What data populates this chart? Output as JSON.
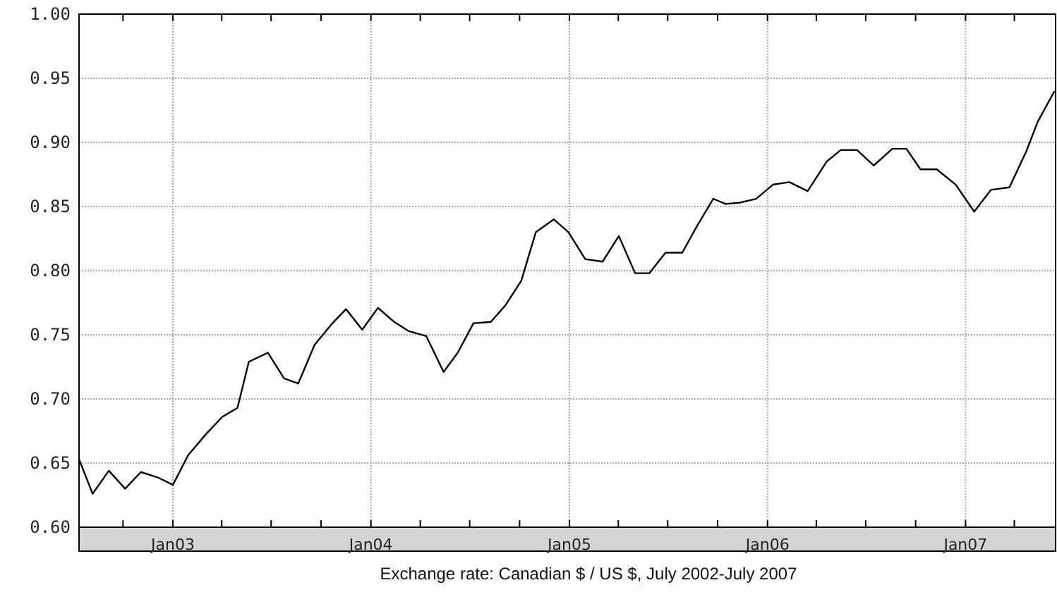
{
  "chart_data": {
    "type": "line",
    "title": "Exchange rate: Canadian $ / US $, July 2002-July 2007",
    "x": [
      "2002-07-12",
      "2002-08-06",
      "2002-09-05",
      "2002-10-05",
      "2002-11-03",
      "2002-12-03",
      "2003-01-01",
      "2003-01-29",
      "2003-03-04",
      "2003-04-02",
      "2003-04-30",
      "2003-05-21",
      "2003-06-25",
      "2003-07-25",
      "2003-08-20",
      "2003-09-19",
      "2003-10-20",
      "2003-11-16",
      "2003-12-16",
      "2004-01-14",
      "2004-02-13",
      "2004-03-10",
      "2004-04-12",
      "2004-05-14",
      "2004-06-09",
      "2004-07-08",
      "2004-08-09",
      "2004-09-05",
      "2004-10-04",
      "2004-10-31",
      "2004-12-03",
      "2004-12-30",
      "2005-01-30",
      "2005-03-03",
      "2005-04-02",
      "2005-05-02",
      "2005-05-28",
      "2005-06-27",
      "2005-07-28",
      "2005-08-23",
      "2005-09-23",
      "2005-10-16",
      "2005-11-11",
      "2005-12-11",
      "2006-01-11",
      "2006-02-10",
      "2006-03-16",
      "2006-04-20",
      "2006-05-16",
      "2006-06-15",
      "2006-07-16",
      "2006-08-19",
      "2006-09-14",
      "2006-10-10",
      "2006-11-09",
      "2006-12-14",
      "2007-01-17",
      "2007-02-17",
      "2007-03-23",
      "2007-04-23",
      "2007-05-14",
      "2007-06-14"
    ],
    "series": [
      {
        "color": "#000000",
        "values": [
          0.653,
          0.626,
          0.644,
          0.63,
          0.643,
          0.639,
          0.633,
          0.656,
          0.673,
          0.686,
          0.693,
          0.729,
          0.736,
          0.716,
          0.712,
          0.742,
          0.758,
          0.77,
          0.754,
          0.771,
          0.76,
          0.753,
          0.749,
          0.721,
          0.736,
          0.759,
          0.76,
          0.773,
          0.792,
          0.83,
          0.84,
          0.83,
          0.809,
          0.807,
          0.827,
          0.798,
          0.798,
          0.814,
          0.814,
          0.834,
          0.856,
          0.852,
          0.853,
          0.856,
          0.867,
          0.869,
          0.862,
          0.885,
          0.894,
          0.894,
          0.882,
          0.895,
          0.895,
          0.879,
          0.879,
          0.867,
          0.846,
          0.863,
          0.865,
          0.893,
          0.916,
          0.94
        ]
      }
    ],
    "xlim": [
      "2002-07-12",
      "2007-06-16"
    ],
    "xticks": [
      {
        "value": "2002-10-01",
        "label": null
      },
      {
        "value": "2003-01-01",
        "label": "Jan03"
      },
      {
        "value": "2003-04-01",
        "label": null
      },
      {
        "value": "2003-07-01",
        "label": null
      },
      {
        "value": "2003-10-01",
        "label": null
      },
      {
        "value": "2004-01-01",
        "label": "Jan04"
      },
      {
        "value": "2004-04-01",
        "label": null
      },
      {
        "value": "2004-07-01",
        "label": null
      },
      {
        "value": "2004-10-01",
        "label": null
      },
      {
        "value": "2005-01-01",
        "label": "Jan05"
      },
      {
        "value": "2005-04-01",
        "label": null
      },
      {
        "value": "2005-07-01",
        "label": null
      },
      {
        "value": "2005-10-01",
        "label": null
      },
      {
        "value": "2006-01-01",
        "label": "Jan06"
      },
      {
        "value": "2006-04-01",
        "label": null
      },
      {
        "value": "2006-07-01",
        "label": null
      },
      {
        "value": "2006-10-01",
        "label": null
      },
      {
        "value": "2007-01-01",
        "label": "Jan07"
      },
      {
        "value": "2007-04-01",
        "label": null
      }
    ],
    "ylim": [
      0.6,
      1.0
    ],
    "yticks": [
      {
        "value": 0.6,
        "label": "0.60"
      },
      {
        "value": 0.65,
        "label": "0.65"
      },
      {
        "value": 0.7,
        "label": "0.70"
      },
      {
        "value": 0.75,
        "label": "0.75"
      },
      {
        "value": 0.8,
        "label": "0.80"
      },
      {
        "value": 0.85,
        "label": "0.85"
      },
      {
        "value": 0.9,
        "label": "0.90"
      },
      {
        "value": 0.95,
        "label": "0.95"
      },
      {
        "value": 1.0,
        "label": "1.00"
      }
    ],
    "grid": true,
    "marker": "none",
    "line_style": "solid"
  }
}
